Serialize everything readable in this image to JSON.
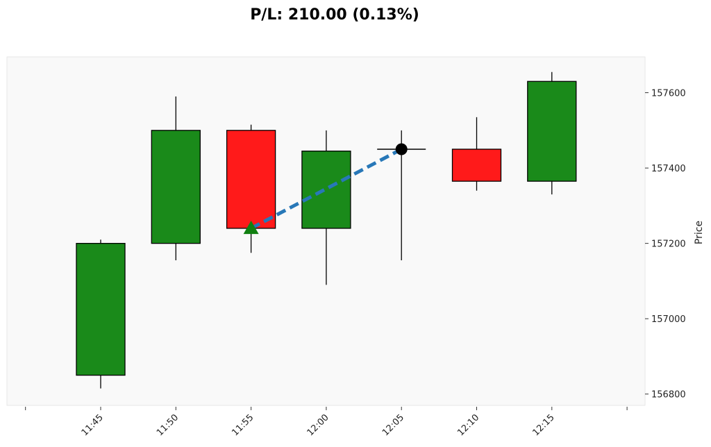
{
  "chart_data": {
    "type": "candlestick",
    "title": "P/L: 210.00 (0.13%)",
    "ylabel": "Price",
    "xlabel": "",
    "ylim": [
      156770,
      157695
    ],
    "y_ticks": [
      156800,
      157000,
      157200,
      157400,
      157600
    ],
    "y_tick_labels": [
      "156800",
      "157000",
      "157200",
      "157400",
      "157600"
    ],
    "x_ticks": [
      "11:45",
      "11:50",
      "11:55",
      "12:00",
      "12:05",
      "12:10",
      "12:15"
    ],
    "grid": false,
    "candles": [
      {
        "time": "11:45",
        "open": 156850,
        "high": 157210,
        "low": 156815,
        "close": 157200
      },
      {
        "time": "11:50",
        "open": 157200,
        "high": 157590,
        "low": 157155,
        "close": 157500
      },
      {
        "time": "11:55",
        "open": 157500,
        "high": 157515,
        "low": 157175,
        "close": 157240
      },
      {
        "time": "12:00",
        "open": 157240,
        "high": 157500,
        "low": 157090,
        "close": 157445
      },
      {
        "time": "12:05",
        "open": 157450,
        "high": 157500,
        "low": 157155,
        "close": 157450
      },
      {
        "time": "12:10",
        "open": 157450,
        "high": 157535,
        "low": 157340,
        "close": 157365
      },
      {
        "time": "12:15",
        "open": 157365,
        "high": 157655,
        "low": 157330,
        "close": 157630
      }
    ],
    "trade": {
      "entry": {
        "time": "11:55",
        "price": 157240,
        "marker": "triangle-up"
      },
      "exit": {
        "time": "12:05",
        "price": 157450,
        "marker": "circle"
      }
    },
    "colors": {
      "up": "#1a8a1a",
      "down": "#ff1a1a",
      "doji": "#000000",
      "trade_line": "#2878b8",
      "entry_marker": "#118011",
      "exit_marker": "#000000",
      "plot_bg": "#f9f9f9"
    }
  }
}
